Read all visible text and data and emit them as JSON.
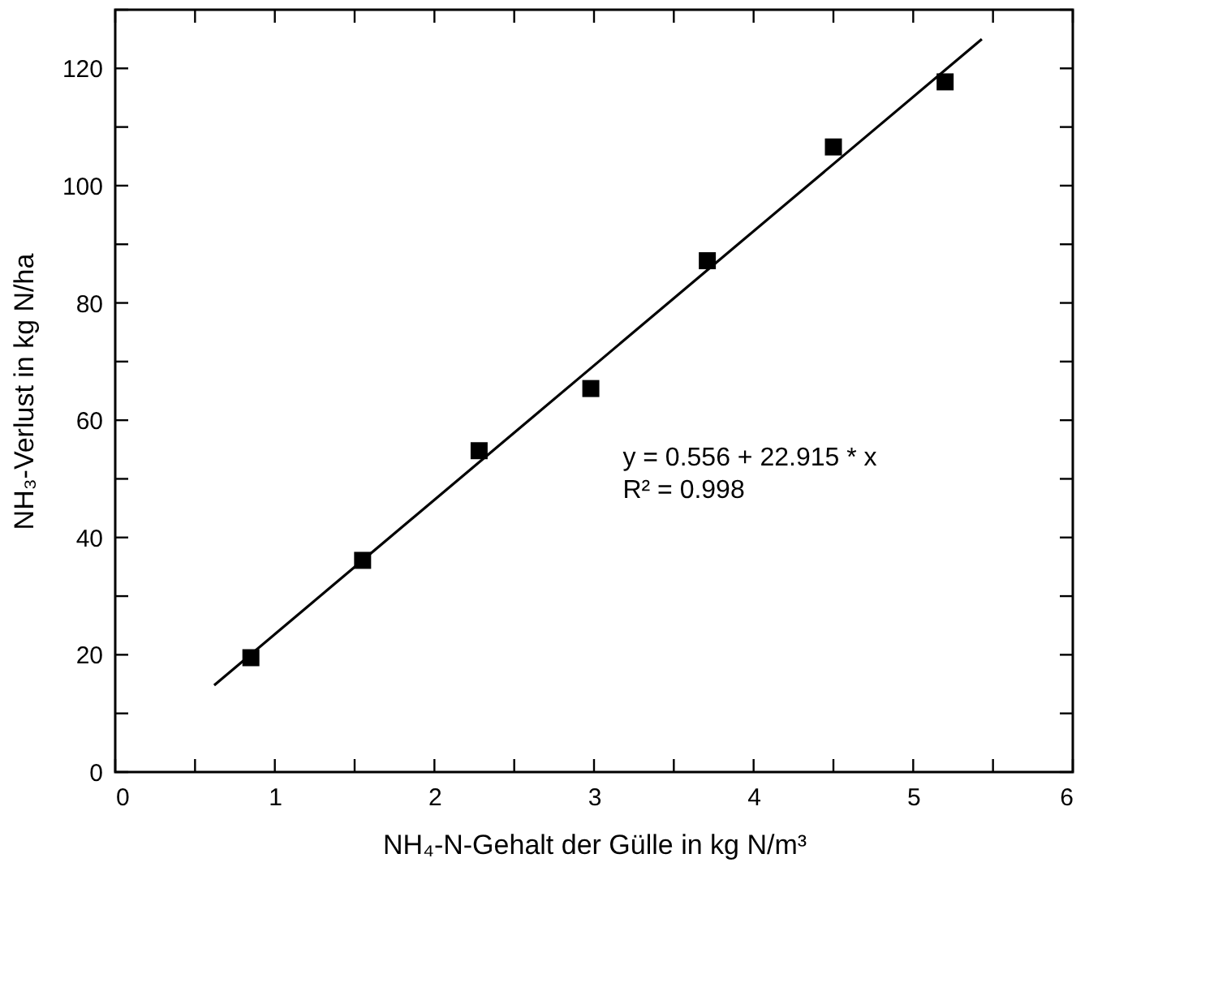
{
  "chart_data": {
    "type": "scatter",
    "xlabel": "NH₄-N-Gehalt der Gülle in kg N/m³",
    "ylabel": "NH₃-Verlust in kg N/ha",
    "series": [
      {
        "color": "#000000",
        "marker": "square",
        "x": [
          0.85,
          1.55,
          2.28,
          2.98,
          3.71,
          4.5,
          5.2
        ],
        "values": [
          19.5,
          36.1,
          54.8,
          65.4,
          87.2,
          106.6,
          117.7
        ]
      },
      {
        "type": "line",
        "color": "#000000",
        "marker": "none",
        "line_style": "solid",
        "x": [
          0.62,
          5.43
        ],
        "values": [
          14.8,
          125.0
        ]
      }
    ],
    "xlim": [
      0,
      6
    ],
    "ylim": [
      0,
      130
    ],
    "xticks": [
      0,
      {
        "value": 0.5,
        "label": null
      },
      1,
      {
        "value": 1.5,
        "label": null
      },
      2,
      {
        "value": 2.5,
        "label": null
      },
      3,
      {
        "value": 3.5,
        "label": null
      },
      4,
      {
        "value": 4.5,
        "label": null
      },
      5,
      {
        "value": 5.5,
        "label": null
      },
      6
    ],
    "yticks": [
      0,
      {
        "value": 10,
        "label": null
      },
      20,
      {
        "value": 30,
        "label": null
      },
      40,
      {
        "value": 50,
        "label": null
      },
      60,
      {
        "value": 70,
        "label": null
      },
      80,
      {
        "value": 90,
        "label": null
      },
      100,
      {
        "value": 110,
        "label": null
      },
      120,
      {
        "value": 130,
        "label": null
      }
    ],
    "annotations": [
      "y = 0.556 + 22.915 * x",
      "R² = 0.998"
    ],
    "grid": false
  }
}
